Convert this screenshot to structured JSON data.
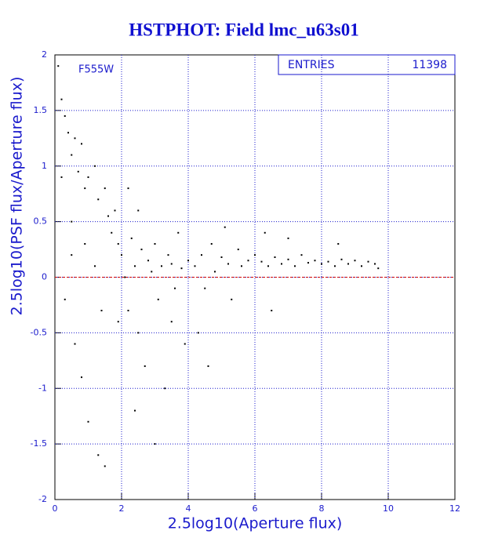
{
  "chart_data": {
    "type": "scatter",
    "title": "HSTPHOT: Field lmc_u63s01",
    "annotation": "F555W",
    "stats": {
      "label": "ENTRIES",
      "value": 11398
    },
    "x_label": "2.5log10(Aperture flux)",
    "y_label": "2.5log10(PSF flux/Aperture flux)",
    "xlim": [
      0,
      12
    ],
    "xticks": [
      0,
      2,
      4,
      6,
      8,
      10,
      12
    ],
    "ylim": [
      -2,
      2
    ],
    "yticks": [
      -2,
      -1.5,
      -1,
      -0.5,
      0,
      0.5,
      1,
      1.5,
      2
    ],
    "grid": true,
    "color": "#000000",
    "reference_line": {
      "y": 0,
      "color": "#cc0000"
    },
    "x": [
      0.1,
      0.2,
      0.3,
      0.4,
      0.5,
      0.6,
      0.7,
      0.8,
      0.9,
      1.0,
      0.2,
      0.5,
      0.3,
      0.6,
      0.8,
      1.0,
      0.5,
      0.9,
      1.2,
      1.3,
      1.5,
      1.6,
      1.7,
      1.8,
      1.4,
      1.5,
      1.3,
      1.2,
      1.9,
      1.9,
      2.0,
      2.1,
      2.2,
      2.3,
      2.4,
      2.5,
      2.6,
      2.7,
      2.8,
      2.9,
      3.0,
      3.1,
      3.2,
      3.3,
      3.4,
      3.5,
      3.6,
      3.7,
      3.8,
      3.9,
      2.2,
      2.5,
      3.0,
      2.4,
      3.5,
      4.0,
      4.2,
      4.4,
      4.5,
      4.7,
      4.8,
      5.0,
      5.2,
      5.3,
      5.5,
      5.6,
      5.8,
      6.0,
      4.3,
      5.1,
      4.6,
      6.2,
      6.4,
      6.6,
      6.8,
      7.0,
      7.2,
      7.4,
      7.6,
      7.8,
      8.0,
      6.5,
      7.0,
      6.3,
      8.2,
      8.4,
      8.6,
      8.8,
      9.0,
      9.2,
      9.4,
      9.6,
      9.7,
      8.5
    ],
    "y": [
      1.9,
      1.6,
      1.45,
      1.3,
      1.1,
      1.25,
      0.95,
      1.2,
      0.8,
      0.9,
      0.9,
      0.5,
      -0.2,
      -0.6,
      -0.9,
      -1.3,
      0.2,
      0.3,
      1.0,
      0.7,
      0.8,
      0.55,
      0.4,
      0.6,
      -0.3,
      -1.7,
      -1.6,
      0.1,
      0.3,
      -0.4,
      0.2,
      0.0,
      -0.3,
      0.35,
      0.1,
      -0.5,
      0.25,
      -0.8,
      0.15,
      0.05,
      0.3,
      -0.2,
      0.1,
      -1.0,
      0.2,
      0.12,
      -0.1,
      0.4,
      0.08,
      -0.6,
      0.8,
      0.6,
      -1.5,
      -1.2,
      -0.4,
      0.15,
      0.1,
      0.2,
      -0.1,
      0.3,
      0.05,
      0.18,
      0.12,
      -0.2,
      0.25,
      0.1,
      0.15,
      0.2,
      -0.5,
      0.45,
      -0.8,
      0.14,
      0.1,
      0.18,
      0.12,
      0.16,
      0.1,
      0.2,
      0.13,
      0.15,
      0.12,
      -0.3,
      0.35,
      0.4,
      0.14,
      0.1,
      0.16,
      0.12,
      0.15,
      0.1,
      0.14,
      0.12,
      0.08,
      0.3
    ]
  }
}
